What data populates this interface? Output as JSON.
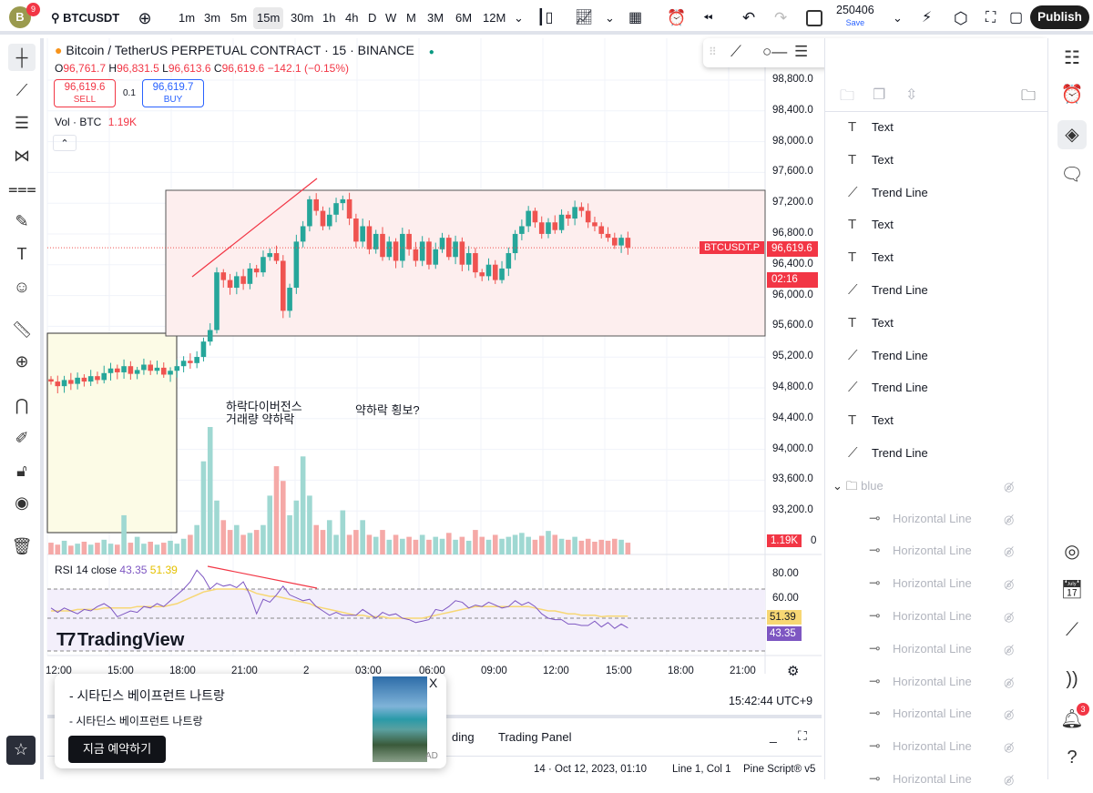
{
  "topbar": {
    "avatar_letter": "B",
    "avatar_badge": "9",
    "symbol": "BTCUSDT",
    "timeframes": [
      "1m",
      "3m",
      "5m",
      "15m",
      "30m",
      "1h",
      "4h",
      "D",
      "W",
      "M",
      "3M",
      "6M",
      "12M"
    ],
    "active_timeframe": "15m",
    "layout_name": "250406",
    "save_label": "Save",
    "publish_label": "Publish"
  },
  "chart": {
    "title": "Bitcoin / TetherUS PERPETUAL CONTRACT · 15 · BINANCE",
    "ohlc": {
      "o_label": "O",
      "o": "96,761.7",
      "h_label": "H",
      "h": "96,831.5",
      "l_label": "L",
      "l": "96,613.6",
      "c_label": "C",
      "c": "96,619.6",
      "change": "−142.1 (−0.15%)"
    },
    "sell_price": "96,619.6",
    "sell_label": "SELL",
    "spread": "0.1",
    "buy_price": "96,619.7",
    "buy_label": "BUY",
    "volume_label": "Vol · BTC",
    "volume_value": "1.19K",
    "price_ticks": [
      "98,800.0",
      "98,400.0",
      "98,000.0",
      "97,600.0",
      "97,200.0",
      "96,800.0",
      "96,400.0",
      "96,000.0",
      "95,600.0",
      "95,200.0",
      "94,800.0",
      "94,400.0",
      "94,000.0",
      "93,600.0",
      "93,200.0"
    ],
    "symbol_tag": "BTCUSDT.P",
    "last_price": "96,619.6",
    "countdown": "02:16",
    "vol_tag": "1.19K",
    "vol_zero": "0",
    "annotation1_line1": "하락다이버전스",
    "annotation1_line2": "거래량 약하락",
    "annotation2": "약하락 횡보?",
    "rsi_label": "RSI 14 close",
    "rsi_value": "43.35",
    "rsi_ma_value": "51.39",
    "rsi_ticks": [
      "80.00",
      "60.00"
    ],
    "time_ticks": [
      "12:00",
      "15:00",
      "18:00",
      "21:00",
      "2",
      "03:00",
      "06:00",
      "09:00",
      "12:00",
      "15:00",
      "18:00",
      "21:00"
    ],
    "watermark": "TradingView",
    "clock": "15:42:44 UTC+9",
    "colors": {
      "up": "#26a69a",
      "down": "#ef5350",
      "rsi": "#7e57c2",
      "rsi_ma": "#f7d774",
      "trend": "#f23645"
    }
  },
  "chart_data": {
    "type": "candlestick",
    "closes": [
      94880,
      94820,
      94900,
      94850,
      94930,
      94880,
      94950,
      94900,
      94990,
      95050,
      95000,
      95080,
      94980,
      95030,
      95100,
      95020,
      95060,
      94970,
      95020,
      95080,
      95150,
      95120,
      95200,
      95400,
      95550,
      96300,
      96200,
      96100,
      96250,
      96150,
      96350,
      96300,
      96500,
      96550,
      96450,
      95800,
      96100,
      96700,
      96900,
      97250,
      97100,
      96900,
      97050,
      97200,
      97250,
      97000,
      96700,
      96900,
      96600,
      96800,
      96500,
      96700,
      96450,
      96800,
      96600,
      96450,
      96700,
      96400,
      96600,
      96750,
      96500,
      96700,
      96400,
      96550,
      96300,
      96250,
      96400,
      96200,
      96350,
      96550,
      96800,
      96900,
      97100,
      96950,
      96800,
      96950,
      96850,
      97050,
      97000,
      97150,
      97100,
      96950,
      96900,
      96800,
      96750,
      96650,
      96750,
      96620
    ],
    "volumes_k": [
      1.2,
      1.0,
      1.4,
      0.9,
      1.1,
      1.3,
      1.0,
      1.2,
      1.5,
      1.1,
      1.0,
      4.0,
      1.2,
      1.8,
      1.1,
      1.3,
      1.0,
      1.2,
      1.4,
      1.1,
      1.6,
      2.0,
      3.0,
      9.5,
      13.0,
      5.5,
      3.5,
      2.5,
      3.0,
      2.0,
      2.2,
      2.5,
      3.0,
      6.0,
      9.0,
      7.5,
      4.0,
      5.5,
      10.0,
      6.0,
      3.0,
      2.5,
      3.5,
      2.0,
      4.5,
      2.0,
      2.5,
      3.5,
      2.0,
      1.8,
      2.5,
      1.5,
      2.0,
      1.6,
      1.8,
      1.5,
      2.0,
      1.5,
      1.8,
      1.6,
      2.2,
      1.5,
      1.8,
      1.4,
      2.5,
      1.8,
      1.5,
      2.0,
      1.6,
      1.8,
      2.0,
      2.2,
      1.8,
      1.5,
      1.9,
      2.4,
      2.0,
      1.6,
      1.5,
      1.8,
      1.4,
      1.6,
      1.3,
      1.5,
      1.4,
      1.6,
      1.5,
      1.2
    ],
    "rsi": [
      57,
      54,
      57,
      55,
      53,
      56,
      55,
      58,
      60,
      57,
      51,
      53,
      55,
      54,
      58,
      57,
      60,
      58,
      62,
      66,
      70,
      75,
      83,
      78,
      70,
      74,
      72,
      73,
      71,
      75,
      66,
      53,
      63,
      61,
      66,
      72,
      66,
      64,
      62,
      63,
      58,
      55,
      52,
      54,
      52,
      52,
      52,
      56,
      53,
      50,
      54,
      52,
      53,
      50,
      49,
      47,
      48,
      49,
      56,
      55,
      58,
      62,
      61,
      57,
      59,
      58,
      61,
      59,
      57,
      58,
      62,
      59,
      61,
      58,
      53,
      50,
      49,
      49,
      46,
      46,
      45,
      45,
      48,
      44,
      47,
      43,
      46,
      43.35
    ],
    "rsi_ma": [
      55,
      55,
      55,
      55,
      56,
      56,
      56,
      56,
      57,
      57,
      57,
      57,
      57,
      58,
      58,
      58,
      58,
      58,
      59,
      60,
      62,
      64,
      66,
      68,
      69,
      70,
      70,
      70,
      70,
      70,
      69,
      67,
      66,
      65,
      65,
      64,
      63,
      62,
      61,
      60,
      58,
      57,
      56,
      55,
      54,
      53,
      52,
      52,
      51,
      51,
      51,
      50,
      50,
      50,
      50,
      50,
      50,
      51,
      52,
      53,
      54,
      55,
      56,
      57,
      58,
      58,
      58,
      58,
      58,
      58,
      58,
      58,
      58,
      57,
      56,
      55,
      55,
      54,
      53,
      53,
      52,
      52,
      52,
      51,
      51.5,
      51.4,
      51.4,
      51.39
    ],
    "price_range": [
      92900,
      99000
    ],
    "rsi_range": [
      25,
      90
    ]
  },
  "drawings": {
    "toolbar": [
      "trend-line",
      "horizontal-ray",
      "parallel-channel",
      "fib-channel",
      "regression",
      "pitchfork",
      "rectangle",
      "text",
      "anchored-text",
      "brush"
    ]
  },
  "object_tree": {
    "items": [
      {
        "type": "text",
        "label": "Text"
      },
      {
        "type": "text",
        "label": "Text"
      },
      {
        "type": "trend",
        "label": "Trend Line"
      },
      {
        "type": "text",
        "label": "Text"
      },
      {
        "type": "text",
        "label": "Text"
      },
      {
        "type": "trend",
        "label": "Trend Line"
      },
      {
        "type": "text",
        "label": "Text"
      },
      {
        "type": "trend",
        "label": "Trend Line"
      },
      {
        "type": "trend",
        "label": "Trend Line"
      },
      {
        "type": "text",
        "label": "Text"
      },
      {
        "type": "trend",
        "label": "Trend Line"
      }
    ],
    "folder": "blue",
    "folder_items": [
      "Horizontal Line",
      "Horizontal Line",
      "Horizontal Line",
      "Horizontal Line",
      "Horizontal Line",
      "Horizontal Line",
      "Horizontal Line",
      "Horizontal Line",
      "Horizontal Line"
    ]
  },
  "bottom": {
    "tab_partial": "ding",
    "tab_trading": "Trading Panel",
    "status_bar": "14 · Oct 12, 2023, 01:10",
    "cursor": "Line 1, Col 1",
    "pine": "Pine Script® v5"
  },
  "ad": {
    "line1": "- 시타딘스 베이프런트 나트랑",
    "line2": "- 시타딘스 베이프런트 나트랑",
    "cta": "지금 예약하기",
    "badge": "AD",
    "close": "X"
  },
  "notifications_badge": "3"
}
